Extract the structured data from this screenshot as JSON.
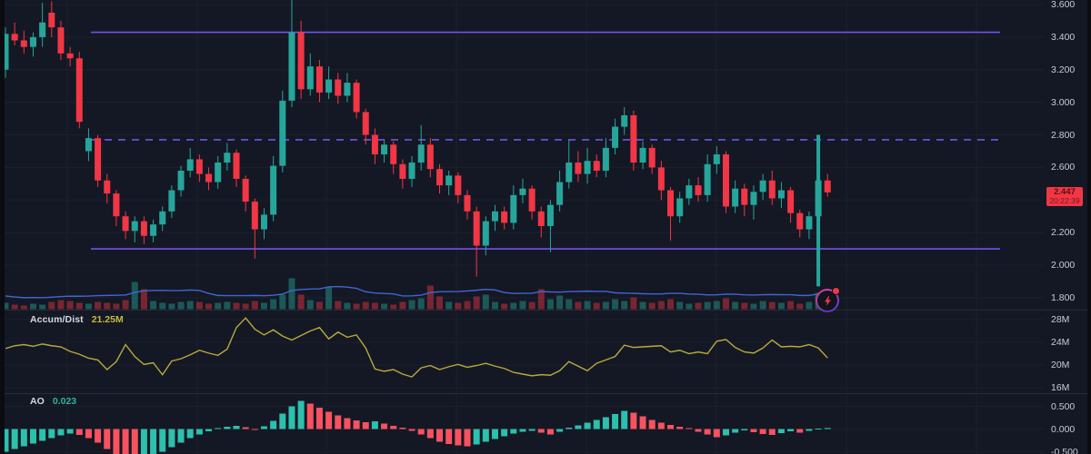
{
  "colors": {
    "background": "#141824",
    "grid": "#1c202c",
    "panel_divider": "#282c38",
    "axis_text": "#c8ccd6",
    "level_line": "#7452e8",
    "candle_up": "#26a69a",
    "candle_down": "#f23645",
    "volume_up": "rgba(38,166,154,0.45)",
    "volume_down": "rgba(242,54,69,0.45)",
    "volume_ma_line": "#3f66d4",
    "accum_dist_line": "#b6aa3d",
    "ao_up": "#2cc0ad",
    "ao_down": "#f7525f",
    "price_label_bg": "#f23645",
    "price_label_text": "#5a1016"
  },
  "icons": {
    "marker": "lightning-bolt-icon",
    "marker_dot": "notification-dot"
  },
  "chart_data": [
    {
      "id": "price",
      "type": "candlestick",
      "title": "",
      "ylim": [
        1.727,
        3.628
      ],
      "price_ticks": [
        "3.600",
        "3.400",
        "3.200",
        "3.000",
        "2.800",
        "2.600",
        "2.200",
        "2.000",
        "1.800"
      ],
      "grid_values": [
        3.6,
        3.4,
        3.2,
        3.0,
        2.8,
        2.6,
        2.4,
        2.2,
        2.0,
        1.8
      ],
      "last_price": "2.447",
      "countdown": "20:22:39",
      "levels": [
        {
          "price": 3.43,
          "style": "solid"
        },
        {
          "price": 2.77,
          "style": "dashed"
        },
        {
          "price": 2.1,
          "style": "solid"
        }
      ],
      "candles": [
        [
          3.2,
          3.46,
          3.15,
          3.42
        ],
        [
          3.42,
          3.49,
          3.35,
          3.38
        ],
        [
          3.38,
          3.44,
          3.3,
          3.34
        ],
        [
          3.34,
          3.43,
          3.28,
          3.4
        ],
        [
          3.4,
          3.61,
          3.34,
          3.49
        ],
        [
          3.55,
          3.62,
          3.4,
          3.46
        ],
        [
          3.46,
          3.5,
          3.26,
          3.3
        ],
        [
          3.3,
          3.34,
          3.22,
          3.27
        ],
        [
          3.27,
          3.31,
          2.84,
          2.88
        ],
        [
          2.7,
          2.84,
          2.64,
          2.78
        ],
        [
          2.78,
          2.8,
          2.48,
          2.52
        ],
        [
          2.52,
          2.56,
          2.38,
          2.44
        ],
        [
          2.44,
          2.46,
          2.24,
          2.3
        ],
        [
          2.3,
          2.33,
          2.16,
          2.21
        ],
        [
          2.21,
          2.3,
          2.14,
          2.27
        ],
        [
          2.27,
          2.3,
          2.13,
          2.18
        ],
        [
          2.18,
          2.28,
          2.14,
          2.25
        ],
        [
          2.25,
          2.36,
          2.21,
          2.33
        ],
        [
          2.33,
          2.49,
          2.29,
          2.46
        ],
        [
          2.46,
          2.61,
          2.42,
          2.58
        ],
        [
          2.58,
          2.72,
          2.54,
          2.65
        ],
        [
          2.65,
          2.68,
          2.51,
          2.56
        ],
        [
          2.56,
          2.6,
          2.46,
          2.51
        ],
        [
          2.51,
          2.67,
          2.47,
          2.63
        ],
        [
          2.63,
          2.75,
          2.58,
          2.69
        ],
        [
          2.69,
          2.71,
          2.48,
          2.53
        ],
        [
          2.53,
          2.55,
          2.33,
          2.39
        ],
        [
          2.39,
          2.41,
          2.04,
          2.22
        ],
        [
          2.22,
          2.35,
          2.16,
          2.31
        ],
        [
          2.31,
          2.67,
          2.27,
          2.61
        ],
        [
          2.61,
          3.07,
          2.57,
          3.01
        ],
        [
          3.01,
          3.63,
          2.97,
          3.43
        ],
        [
          3.43,
          3.5,
          3.02,
          3.08
        ],
        [
          3.08,
          3.3,
          3.04,
          3.22
        ],
        [
          3.22,
          3.26,
          3.0,
          3.06
        ],
        [
          3.06,
          3.22,
          3.02,
          3.14
        ],
        [
          3.14,
          3.18,
          2.99,
          3.04
        ],
        [
          3.04,
          3.18,
          3.0,
          3.12
        ],
        [
          3.12,
          3.14,
          2.9,
          2.94
        ],
        [
          2.94,
          2.96,
          2.74,
          2.8
        ],
        [
          2.8,
          2.84,
          2.62,
          2.68
        ],
        [
          2.68,
          2.77,
          2.63,
          2.74
        ],
        [
          2.74,
          2.76,
          2.56,
          2.62
        ],
        [
          2.62,
          2.65,
          2.47,
          2.53
        ],
        [
          2.53,
          2.67,
          2.48,
          2.63
        ],
        [
          2.63,
          2.86,
          2.58,
          2.74
        ],
        [
          2.74,
          2.78,
          2.54,
          2.59
        ],
        [
          2.59,
          2.62,
          2.44,
          2.49
        ],
        [
          2.49,
          2.58,
          2.43,
          2.55
        ],
        [
          2.55,
          2.57,
          2.38,
          2.43
        ],
        [
          2.43,
          2.46,
          2.28,
          2.33
        ],
        [
          2.33,
          2.36,
          1.93,
          2.12
        ],
        [
          2.12,
          2.3,
          2.06,
          2.27
        ],
        [
          2.27,
          2.37,
          2.21,
          2.33
        ],
        [
          2.33,
          2.36,
          2.22,
          2.26
        ],
        [
          2.26,
          2.49,
          2.22,
          2.43
        ],
        [
          2.43,
          2.53,
          2.38,
          2.47
        ],
        [
          2.47,
          2.49,
          2.28,
          2.33
        ],
        [
          2.33,
          2.36,
          2.17,
          2.24
        ],
        [
          2.24,
          2.4,
          2.08,
          2.37
        ],
        [
          2.37,
          2.58,
          2.33,
          2.51
        ],
        [
          2.51,
          2.77,
          2.47,
          2.63
        ],
        [
          2.63,
          2.7,
          2.51,
          2.56
        ],
        [
          2.56,
          2.72,
          2.5,
          2.64
        ],
        [
          2.64,
          2.68,
          2.54,
          2.58
        ],
        [
          2.58,
          2.78,
          2.54,
          2.72
        ],
        [
          2.72,
          2.9,
          2.68,
          2.85
        ],
        [
          2.85,
          2.97,
          2.8,
          2.92
        ],
        [
          2.92,
          2.95,
          2.58,
          2.63
        ],
        [
          2.63,
          2.76,
          2.59,
          2.72
        ],
        [
          2.72,
          2.74,
          2.56,
          2.6
        ],
        [
          2.6,
          2.64,
          2.4,
          2.46
        ],
        [
          2.46,
          2.48,
          2.15,
          2.3
        ],
        [
          2.3,
          2.45,
          2.26,
          2.41
        ],
        [
          2.41,
          2.53,
          2.37,
          2.49
        ],
        [
          2.49,
          2.54,
          2.39,
          2.43
        ],
        [
          2.43,
          2.68,
          2.39,
          2.62
        ],
        [
          2.62,
          2.73,
          2.56,
          2.68
        ],
        [
          2.68,
          2.7,
          2.32,
          2.36
        ],
        [
          2.36,
          2.52,
          2.32,
          2.47
        ],
        [
          2.47,
          2.5,
          2.3,
          2.37
        ],
        [
          2.37,
          2.49,
          2.28,
          2.45
        ],
        [
          2.45,
          2.56,
          2.4,
          2.52
        ],
        [
          2.52,
          2.58,
          2.37,
          2.41
        ],
        [
          2.41,
          2.51,
          2.35,
          2.46
        ],
        [
          2.46,
          2.48,
          2.26,
          2.32
        ],
        [
          2.32,
          2.34,
          2.17,
          2.22
        ],
        [
          2.22,
          2.33,
          2.16,
          2.3
        ],
        [
          2.3,
          2.8,
          1.87,
          2.52
        ],
        [
          2.52,
          2.56,
          2.42,
          2.447
        ]
      ],
      "volume": [
        7,
        5,
        4,
        6,
        5,
        8,
        10,
        9,
        7,
        6,
        8,
        7,
        6,
        10,
        30,
        22,
        9,
        7,
        6,
        8,
        9,
        8,
        6,
        7,
        8,
        7,
        6,
        9,
        7,
        11,
        16,
        34,
        16,
        10,
        8,
        24,
        9,
        7,
        6,
        8,
        7,
        6,
        5,
        8,
        10,
        12,
        26,
        14,
        8,
        7,
        9,
        14,
        16,
        8,
        6,
        7,
        9,
        8,
        22,
        11,
        15,
        11,
        8,
        9,
        7,
        8,
        11,
        9,
        13,
        8,
        7,
        9,
        11,
        8,
        6,
        7,
        8,
        9,
        12,
        8,
        7,
        6,
        9,
        8,
        7,
        9,
        6,
        8,
        18,
        9
      ]
    },
    {
      "id": "accum_dist",
      "type": "line",
      "label": "Accum/Dist",
      "value_label": "21.25M",
      "ylim": [
        15.04,
        29.6
      ],
      "ticks": [
        "28M",
        "24M",
        "20M",
        "16M"
      ],
      "values": [
        22.9,
        23.4,
        23.6,
        23.3,
        23.7,
        23.4,
        23.2,
        22.4,
        21.9,
        21.2,
        20.9,
        19.2,
        20.6,
        23.6,
        21.5,
        20.1,
        20.4,
        18.3,
        20.7,
        21.1,
        21.8,
        22.6,
        22.1,
        21.7,
        22.8,
        26.6,
        28.3,
        26.3,
        25.3,
        26.2,
        25.1,
        24.4,
        25.2,
        26.0,
        26.6,
        24.6,
        25.8,
        24.9,
        25.3,
        23.0,
        19.3,
        18.9,
        19.2,
        18.4,
        17.9,
        19.5,
        19.9,
        19.2,
        19.7,
        20.1,
        19.6,
        19.9,
        20.3,
        19.8,
        19.4,
        18.7,
        18.4,
        18.1,
        18.3,
        18.2,
        19.0,
        20.6,
        19.8,
        19.0,
        20.3,
        20.9,
        21.5,
        23.5,
        23.1,
        23.2,
        23.3,
        23.4,
        22.3,
        22.6,
        22.0,
        22.3,
        22.0,
        24.2,
        24.5,
        23.1,
        22.3,
        22.1,
        23.0,
        24.4,
        23.2,
        23.3,
        23.2,
        23.6,
        23.0,
        21.25
      ]
    },
    {
      "id": "ao",
      "type": "histogram",
      "label": "AO",
      "value_label": "0.023",
      "ylim": [
        -0.55,
        0.77
      ],
      "ticks": [
        "0.500",
        "0.000",
        "-0.500"
      ],
      "values": [
        -0.5,
        -0.44,
        -0.38,
        -0.32,
        -0.26,
        -0.2,
        -0.14,
        -0.1,
        -0.13,
        -0.2,
        -0.3,
        -0.44,
        -0.58,
        -0.7,
        -0.73,
        -0.68,
        -0.6,
        -0.5,
        -0.4,
        -0.3,
        -0.2,
        -0.12,
        -0.05,
        0.02,
        0.05,
        0.07,
        0.04,
        -0.02,
        0.06,
        0.18,
        0.34,
        0.5,
        0.62,
        0.56,
        0.47,
        0.38,
        0.3,
        0.24,
        0.19,
        0.15,
        0.17,
        0.12,
        0.07,
        0.03,
        -0.04,
        -0.12,
        -0.2,
        -0.28,
        -0.33,
        -0.36,
        -0.38,
        -0.34,
        -0.28,
        -0.22,
        -0.16,
        -0.1,
        -0.06,
        -0.04,
        -0.08,
        -0.12,
        -0.06,
        0.03,
        0.08,
        0.14,
        0.2,
        0.26,
        0.33,
        0.4,
        0.36,
        0.28,
        0.2,
        0.14,
        0.09,
        0.05,
        0.02,
        -0.06,
        -0.12,
        -0.18,
        -0.14,
        -0.08,
        -0.03,
        -0.07,
        -0.11,
        -0.13,
        -0.09,
        -0.05,
        -0.08,
        -0.04,
        0.01,
        0.023
      ]
    }
  ]
}
